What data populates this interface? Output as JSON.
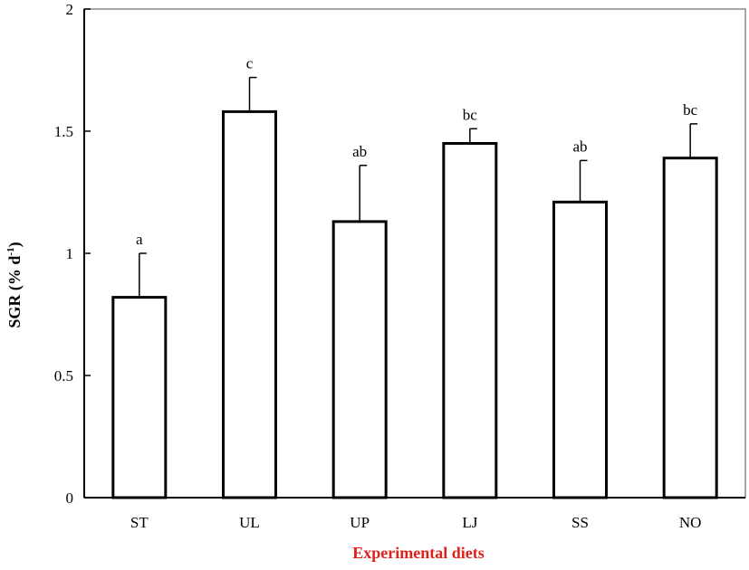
{
  "chart_data": {
    "type": "bar",
    "categories": [
      "ST",
      "UL",
      "UP",
      "LJ",
      "SS",
      "NO"
    ],
    "values": [
      0.82,
      1.58,
      1.13,
      1.45,
      1.21,
      1.39
    ],
    "error": [
      0.18,
      0.14,
      0.23,
      0.06,
      0.17,
      0.14
    ],
    "significance": [
      "a",
      "c",
      "ab",
      "bc",
      "ab",
      "bc"
    ],
    "xlabel": "Experimental diets",
    "ylabel_main": "SGR (% d",
    "ylabel_sup": "-1",
    "ylabel_close": ")",
    "ylim": [
      0,
      2
    ],
    "yticks": [
      "0",
      "0.5",
      "1",
      "1.5",
      "2"
    ],
    "grid": false,
    "colors": {
      "bar_fill": "#ffffff",
      "bar_stroke": "#000000",
      "xlabel": "#e0201b"
    }
  }
}
